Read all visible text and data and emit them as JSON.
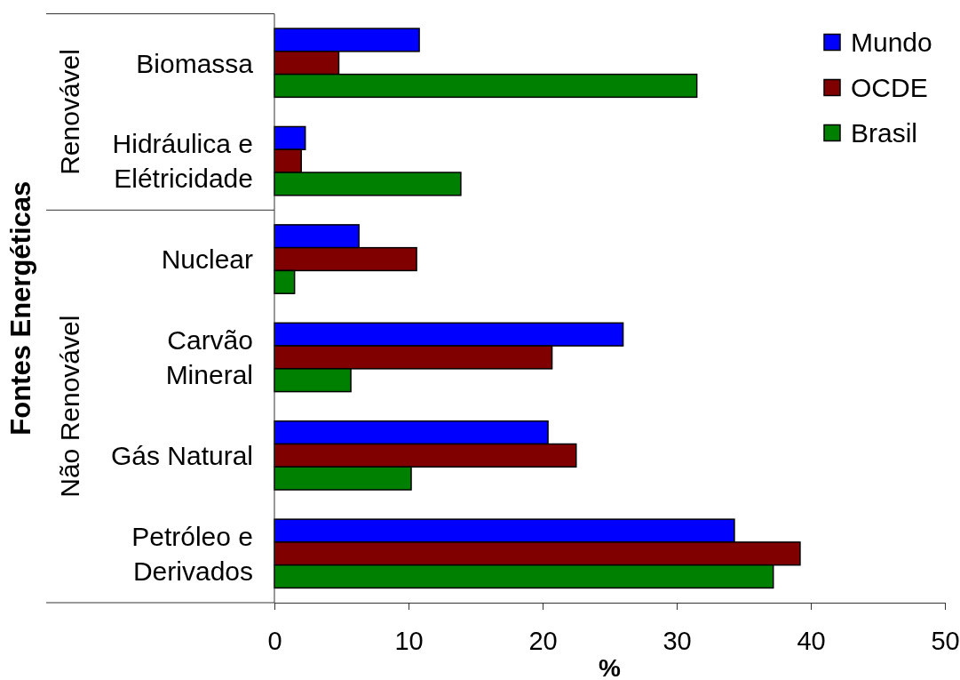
{
  "chart_data": {
    "type": "bar",
    "orientation": "horizontal",
    "categories": [
      "Biomassa",
      "Hidráulica e\nElétricidade",
      "Nuclear",
      "Carvão\nMineral",
      "Gás Natural",
      "Petróleo e\nDerivados"
    ],
    "series": [
      {
        "name": "Mundo",
        "color": "#0000ff",
        "values": [
          10.8,
          2.3,
          6.3,
          26.0,
          20.4,
          34.3
        ]
      },
      {
        "name": "OCDE",
        "color": "#800000",
        "values": [
          4.8,
          2.0,
          10.6,
          20.7,
          22.5,
          39.2
        ]
      },
      {
        "name": "Brasil",
        "color": "#008000",
        "values": [
          31.5,
          13.9,
          1.5,
          5.7,
          10.2,
          37.2
        ]
      }
    ],
    "xlim": [
      0,
      50
    ],
    "xticks": [
      0,
      10,
      20,
      30,
      40,
      50
    ],
    "xlabel": "%",
    "ylabel": "Fontes Energéticas",
    "annotations": [
      "Renovável",
      "Não Renovável"
    ],
    "legend": "top right"
  }
}
